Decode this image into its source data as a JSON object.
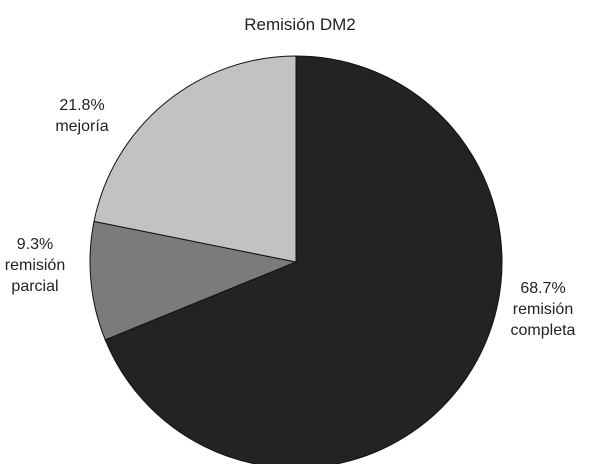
{
  "chart_data": {
    "type": "pie",
    "title": "Remisión DM2",
    "start_angle_deg": 0,
    "direction": "clockwise",
    "slices": [
      {
        "value": 68.7,
        "percent_label": "68.7%",
        "label_lines": [
          "remisión",
          "completa"
        ],
        "color": "#232323"
      },
      {
        "value": 9.3,
        "percent_label": "9.3%",
        "label_lines": [
          "remisión",
          "parcial"
        ],
        "color": "#7b7b7b"
      },
      {
        "value": 21.8,
        "percent_label": "21.8%",
        "label_lines": [
          "mejoría"
        ],
        "color": "#c2c2c2"
      }
    ],
    "stroke_color": "#111111",
    "legend": "none"
  }
}
